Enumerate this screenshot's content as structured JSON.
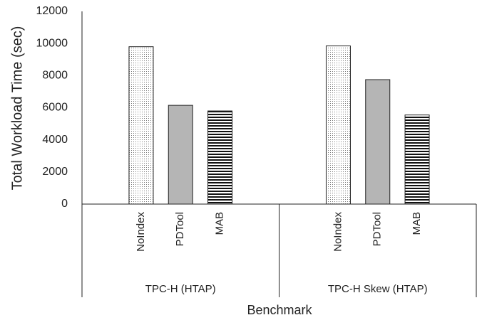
{
  "chart_data": {
    "type": "bar",
    "y_label": "Total Workload Time (sec)",
    "x_label": "Benchmark",
    "groups": [
      {
        "name": "TPC-H (HTAP)",
        "categories": [
          "NoIndex",
          "PDTool",
          "MAB"
        ],
        "values": [
          9800,
          6150,
          5800
        ]
      },
      {
        "name": "TPC-H Skew (HTAP)",
        "categories": [
          "NoIndex",
          "PDTool",
          "MAB"
        ],
        "values": [
          9850,
          7750,
          5550
        ]
      }
    ],
    "fills": [
      "dots",
      "#b5b5b5",
      "stripes"
    ],
    "ylim": [
      0,
      12000
    ],
    "yticks": [
      0,
      2000,
      4000,
      6000,
      8000,
      10000,
      12000
    ],
    "grid": false
  }
}
